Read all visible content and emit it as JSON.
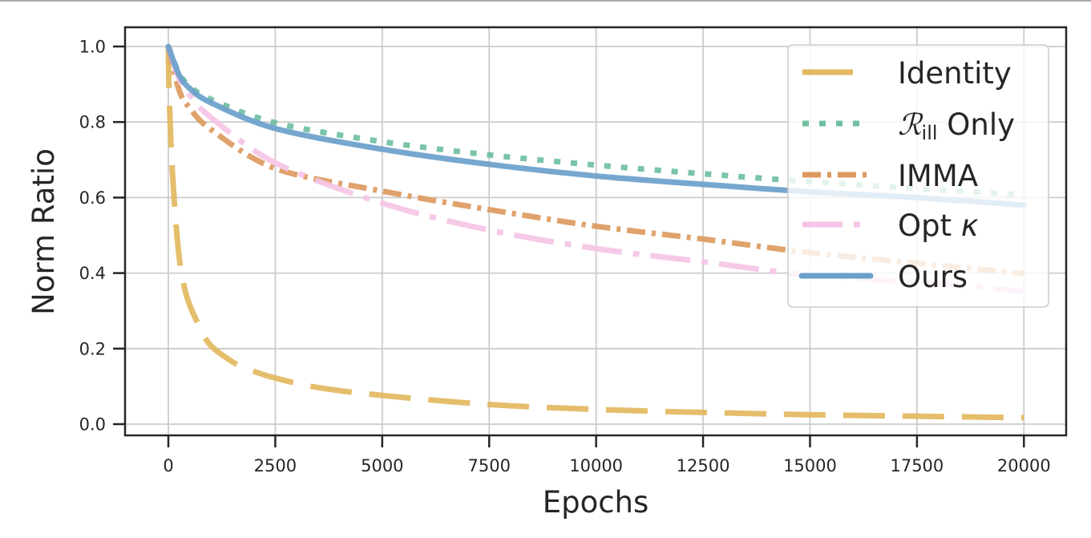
{
  "chart_data": {
    "type": "line",
    "title": "",
    "xlabel": "Epochs",
    "ylabel": "Norm Ratio",
    "xlim": [
      -1000,
      21000
    ],
    "ylim": [
      -0.03,
      1.05
    ],
    "xticks": [
      0,
      2500,
      5000,
      7500,
      10000,
      12500,
      15000,
      17500,
      20000
    ],
    "xtick_labels": [
      "0",
      "2500",
      "5000",
      "7500",
      "10000",
      "12500",
      "15000",
      "17500",
      "20000"
    ],
    "yticks": [
      0.0,
      0.2,
      0.4,
      0.6,
      0.8,
      1.0
    ],
    "ytick_labels": [
      "0.0",
      "0.2",
      "0.4",
      "0.6",
      "0.8",
      "1.0"
    ],
    "grid": true,
    "legend_position": "upper right",
    "series": [
      {
        "name": "Identity",
        "style": "dashed",
        "color": "#e3b85f",
        "x": [
          0,
          20,
          94,
          231,
          400,
          660,
          975,
          1500,
          1850,
          2500,
          3500,
          5000,
          7500,
          10000,
          12500,
          15000,
          17500,
          20000
        ],
        "values": [
          1.0,
          0.87,
          0.67,
          0.465,
          0.35,
          0.274,
          0.21,
          0.165,
          0.146,
          0.122,
          0.097,
          0.076,
          0.052,
          0.039,
          0.031,
          0.025,
          0.021,
          0.017
        ]
      },
      {
        "name": "R_ill Only",
        "display_name_main": "ℛ",
        "display_name_sub": "ill",
        "display_name_suffix": " Only",
        "style": "dotted",
        "color": "#6fbf9f",
        "x": [
          0,
          250,
          500,
          1000,
          2500,
          5000,
          7500,
          10000,
          12500,
          15000,
          17500,
          20000
        ],
        "values": [
          1.0,
          0.93,
          0.895,
          0.86,
          0.798,
          0.748,
          0.713,
          0.686,
          0.663,
          0.642,
          0.624,
          0.607
        ]
      },
      {
        "name": "IMMA",
        "style": "dashdot",
        "color": "#dd9a5f",
        "x": [
          0,
          250,
          500,
          1000,
          2500,
          5000,
          7500,
          10000,
          12500,
          15000,
          17500,
          20000
        ],
        "values": [
          1.0,
          0.885,
          0.837,
          0.78,
          0.677,
          0.617,
          0.568,
          0.524,
          0.49,
          0.454,
          0.426,
          0.399
        ]
      },
      {
        "name": "Opt κ",
        "style": "long-dashdot",
        "color": "#f5c4e6",
        "x": [
          0,
          250,
          500,
          1000,
          2500,
          5000,
          7500,
          10000,
          12500,
          15000,
          17500,
          20000
        ],
        "values": [
          1.0,
          0.915,
          0.872,
          0.812,
          0.692,
          0.585,
          0.514,
          0.465,
          0.43,
          0.394,
          0.376,
          0.352
        ]
      },
      {
        "name": "Ours",
        "style": "solid",
        "color": "#6a9fcb",
        "x": [
          0,
          250,
          500,
          1000,
          2500,
          5000,
          7500,
          10000,
          12500,
          15000,
          17500,
          20000
        ],
        "values": [
          1.0,
          0.925,
          0.889,
          0.851,
          0.783,
          0.728,
          0.688,
          0.657,
          0.635,
          0.615,
          0.6,
          0.58
        ]
      }
    ]
  },
  "legend": {
    "identity": "Identity",
    "rill_main": "ℛ",
    "rill_sub": "ill",
    "rill_suffix": " Only",
    "imma": "IMMA",
    "opt_main": "Opt ",
    "opt_kappa": "κ",
    "ours": "Ours"
  },
  "axes": {
    "xlabel": "Epochs",
    "ylabel": "Norm Ratio",
    "xticks": [
      "0",
      "2500",
      "5000",
      "7500",
      "10000",
      "12500",
      "15000",
      "17500",
      "20000"
    ],
    "yticks": [
      "0.0",
      "0.2",
      "0.4",
      "0.6",
      "0.8",
      "1.0"
    ]
  }
}
